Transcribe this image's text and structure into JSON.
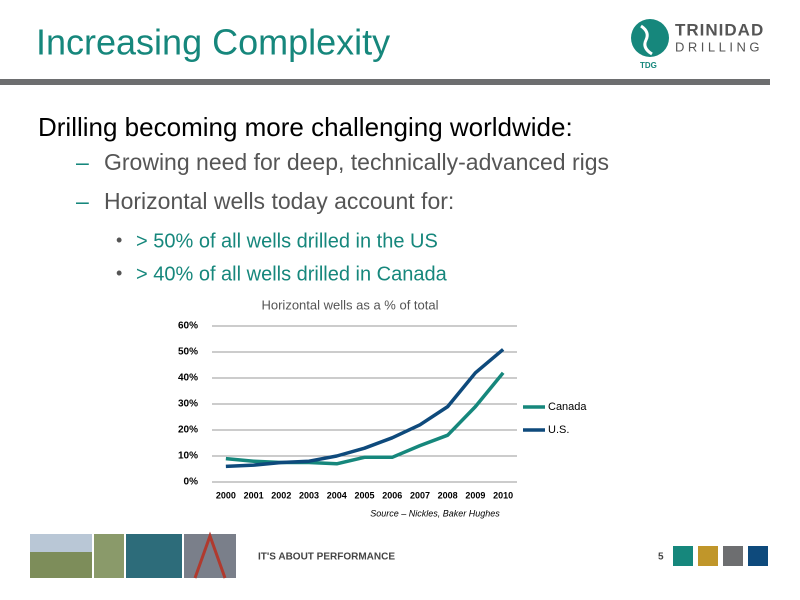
{
  "header": {
    "title": "Increasing Complexity",
    "logo_top": "TRINIDAD",
    "logo_bottom": "DRILLING",
    "logo_badge": "TDG"
  },
  "bullets": {
    "main": "Drilling becoming more challenging worldwide:",
    "sub": [
      "Growing need for deep, technically-advanced rigs",
      "Horizontal wells today account for:"
    ],
    "subsub": [
      "> 50% of all wells drilled in the US",
      "> 40% of all wells drilled in Canada"
    ]
  },
  "chart_data": {
    "type": "line",
    "title": "Horizontal wells as a % of total",
    "categories": [
      "2000",
      "2001",
      "2002",
      "2003",
      "2004",
      "2005",
      "2006",
      "2007",
      "2008",
      "2009",
      "2010"
    ],
    "series": [
      {
        "name": "Canada",
        "color": "#16877c",
        "values": [
          9,
          8,
          7.5,
          7.5,
          7,
          9.5,
          9.5,
          14,
          18,
          29,
          42
        ]
      },
      {
        "name": "U.S.",
        "color": "#0e4a7c",
        "values": [
          6,
          6.5,
          7.5,
          8,
          10,
          13,
          17,
          22,
          29,
          42,
          51
        ]
      }
    ],
    "ylim": [
      0,
      60
    ],
    "yticks": [
      {
        "value": 0,
        "label": "0%"
      },
      {
        "value": 10,
        "label": "10%"
      },
      {
        "value": 20,
        "label": "20%"
      },
      {
        "value": 30,
        "label": "30%"
      },
      {
        "value": 40,
        "label": "40%"
      },
      {
        "value": 50,
        "label": "50%"
      },
      {
        "value": 60,
        "label": "60%"
      }
    ],
    "grid": true,
    "legend": "right",
    "source": "Source – Nickles, Baker Hughes"
  },
  "footer": {
    "tagline": "IT'S ABOUT PERFORMANCE",
    "page": "5"
  }
}
